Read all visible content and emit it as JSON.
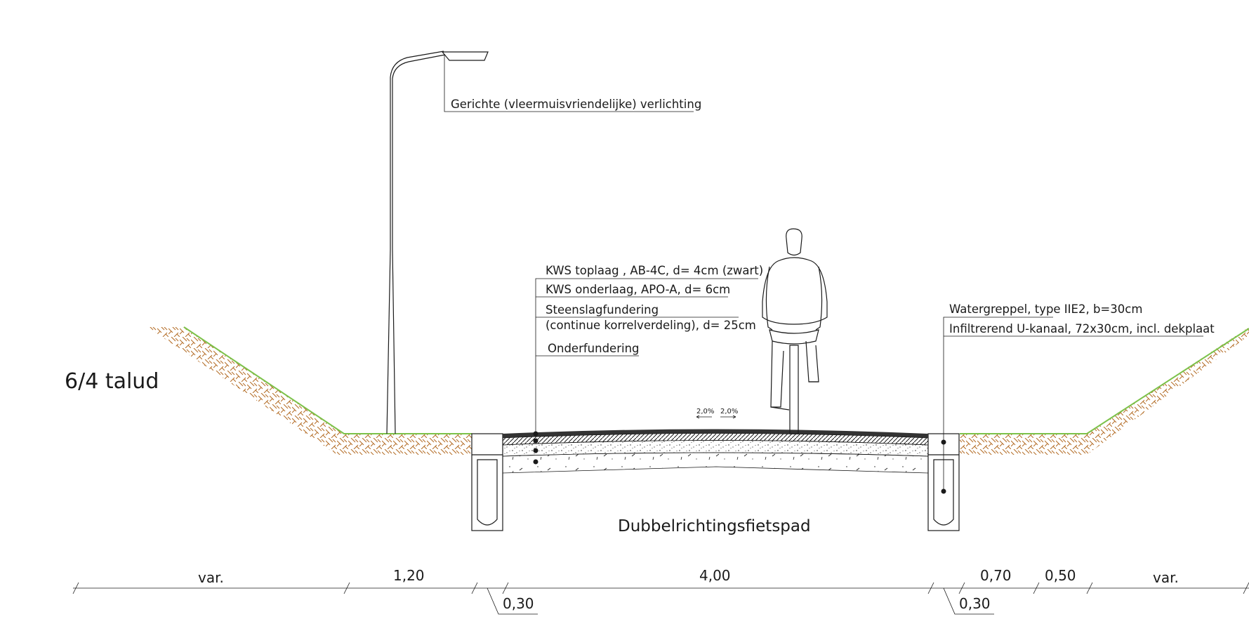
{
  "diagram": {
    "section_label": "6/4 talud",
    "road_name": "Dubbelrichtingsfietspad",
    "lighting_label": "Gerichte (vleermuisvriendelijke) verlichting",
    "pavement_layers": [
      "KWS toplaag , AB-4C, d= 4cm (zwart)",
      "KWS onderlaag, APO-A, d= 6cm",
      "Steenslagfundering",
      "(continue korrelverdeling), d= 25cm",
      "Onderfundering"
    ],
    "drainage_labels": [
      "Watergreppel, type IIE2, b=30cm",
      "Infiltrerend U-kanaal, 72x30cm, incl. dekplaat"
    ],
    "slopes": [
      "2,0%",
      "2,0%"
    ],
    "dimensions_top": [
      "var.",
      "1,20",
      "4,00",
      "0,70",
      "0,50",
      "var."
    ],
    "dimensions_bottom": [
      "0,30",
      "0,30"
    ],
    "colors": {
      "soil": "#b5702b",
      "grass": "#7cc24a",
      "line": "#1a1a1a"
    }
  }
}
